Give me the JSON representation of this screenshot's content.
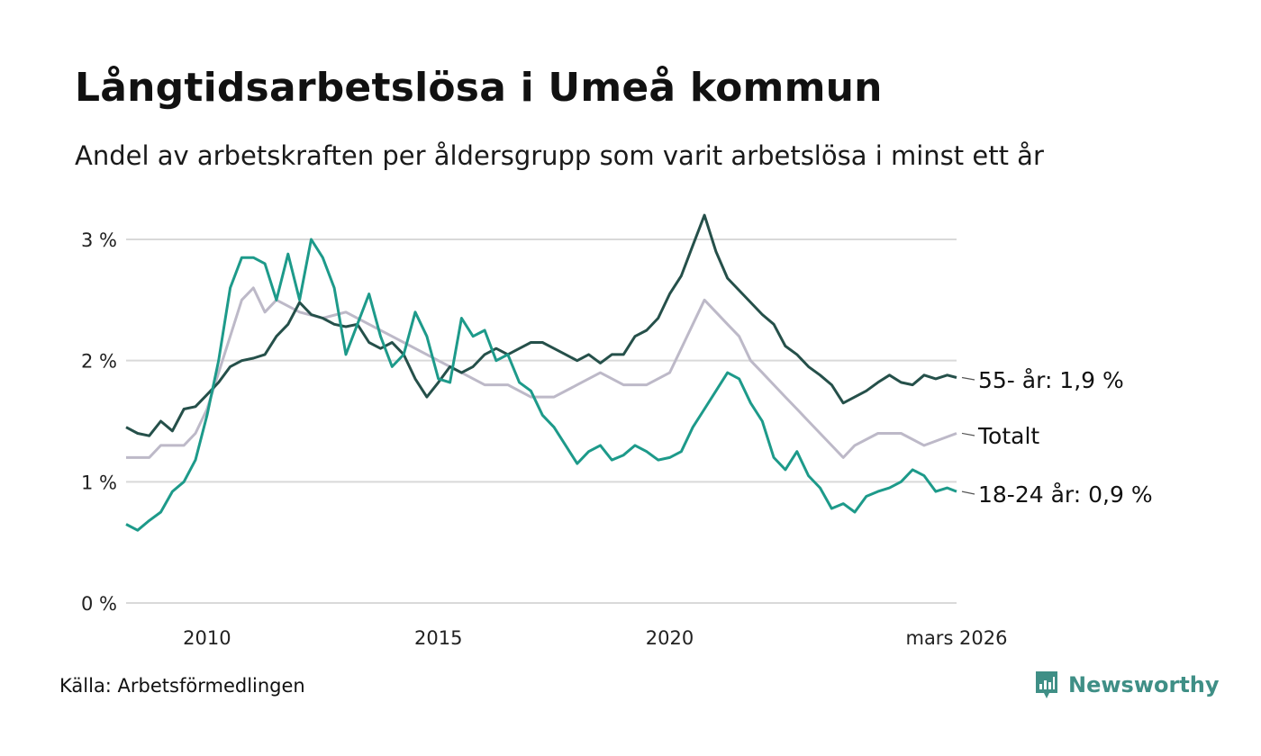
{
  "header": {
    "title": "Långtidsarbetslösa i Umeå kommun",
    "subtitle": "Andel av arbetskraften per åldersgrupp som varit arbetslösa i minst ett år"
  },
  "footer": {
    "source": "Källa: Arbetsförmedlingen",
    "brand": "Newsworthy"
  },
  "colors": {
    "older": "#25504a",
    "young": "#1d9a8a",
    "total": "#bdb9c8",
    "grid": "#d9d9d9",
    "brand": "#3f8f86"
  },
  "chart_data": {
    "type": "line",
    "title": "Långtidsarbetslösa i Umeå kommun",
    "xlabel": "",
    "ylabel": "",
    "x_start": 2008.25,
    "x_end": 2026.2,
    "ylim": [
      0,
      3.2
    ],
    "y_ticks": [
      0,
      1,
      2,
      3
    ],
    "y_tick_labels": [
      "0 %",
      "1 %",
      "2 %",
      "3 %"
    ],
    "x_ticks": [
      2010,
      2015,
      2020,
      2026.2
    ],
    "x_tick_labels": [
      "2010",
      "2015",
      "2020",
      "mars 2026"
    ],
    "grid": true,
    "series": [
      {
        "name": "55- år",
        "label": "55- år: 1,9 %",
        "points": [
          [
            2008.25,
            1.45
          ],
          [
            2008.5,
            1.4
          ],
          [
            2008.75,
            1.38
          ],
          [
            2009.0,
            1.5
          ],
          [
            2009.25,
            1.42
          ],
          [
            2009.5,
            1.6
          ],
          [
            2009.75,
            1.62
          ],
          [
            2010.0,
            1.72
          ],
          [
            2010.25,
            1.82
          ],
          [
            2010.5,
            1.95
          ],
          [
            2010.75,
            2.0
          ],
          [
            2011.0,
            2.02
          ],
          [
            2011.25,
            2.05
          ],
          [
            2011.5,
            2.2
          ],
          [
            2011.75,
            2.3
          ],
          [
            2012.0,
            2.48
          ],
          [
            2012.25,
            2.38
          ],
          [
            2012.5,
            2.35
          ],
          [
            2012.75,
            2.3
          ],
          [
            2013.0,
            2.28
          ],
          [
            2013.25,
            2.3
          ],
          [
            2013.5,
            2.15
          ],
          [
            2013.75,
            2.1
          ],
          [
            2014.0,
            2.15
          ],
          [
            2014.25,
            2.05
          ],
          [
            2014.5,
            1.85
          ],
          [
            2014.75,
            1.7
          ],
          [
            2015.0,
            1.82
          ],
          [
            2015.25,
            1.95
          ],
          [
            2015.5,
            1.9
          ],
          [
            2015.75,
            1.95
          ],
          [
            2016.0,
            2.05
          ],
          [
            2016.25,
            2.1
          ],
          [
            2016.5,
            2.05
          ],
          [
            2016.75,
            2.1
          ],
          [
            2017.0,
            2.15
          ],
          [
            2017.25,
            2.15
          ],
          [
            2017.5,
            2.1
          ],
          [
            2017.75,
            2.05
          ],
          [
            2018.0,
            2.0
          ],
          [
            2018.25,
            2.05
          ],
          [
            2018.5,
            1.98
          ],
          [
            2018.75,
            2.05
          ],
          [
            2019.0,
            2.05
          ],
          [
            2019.25,
            2.2
          ],
          [
            2019.5,
            2.25
          ],
          [
            2019.75,
            2.35
          ],
          [
            2020.0,
            2.55
          ],
          [
            2020.25,
            2.7
          ],
          [
            2020.5,
            2.95
          ],
          [
            2020.75,
            3.2
          ],
          [
            2021.0,
            2.9
          ],
          [
            2021.25,
            2.68
          ],
          [
            2021.5,
            2.58
          ],
          [
            2021.75,
            2.48
          ],
          [
            2022.0,
            2.38
          ],
          [
            2022.25,
            2.3
          ],
          [
            2022.5,
            2.12
          ],
          [
            2022.75,
            2.05
          ],
          [
            2023.0,
            1.95
          ],
          [
            2023.25,
            1.88
          ],
          [
            2023.5,
            1.8
          ],
          [
            2023.75,
            1.65
          ],
          [
            2024.0,
            1.7
          ],
          [
            2024.25,
            1.75
          ],
          [
            2024.5,
            1.82
          ],
          [
            2024.75,
            1.88
          ],
          [
            2025.0,
            1.82
          ],
          [
            2025.25,
            1.8
          ],
          [
            2025.5,
            1.88
          ],
          [
            2025.75,
            1.85
          ],
          [
            2026.0,
            1.88
          ],
          [
            2026.2,
            1.86
          ]
        ]
      },
      {
        "name": "Totalt",
        "label": "Totalt",
        "points": [
          [
            2008.25,
            1.2
          ],
          [
            2008.75,
            1.2
          ],
          [
            2009.0,
            1.3
          ],
          [
            2009.5,
            1.3
          ],
          [
            2009.75,
            1.4
          ],
          [
            2010.0,
            1.6
          ],
          [
            2010.25,
            1.9
          ],
          [
            2010.5,
            2.2
          ],
          [
            2010.75,
            2.5
          ],
          [
            2011.0,
            2.6
          ],
          [
            2011.25,
            2.4
          ],
          [
            2011.5,
            2.5
          ],
          [
            2011.75,
            2.45
          ],
          [
            2012.0,
            2.4
          ],
          [
            2012.5,
            2.35
          ],
          [
            2013.0,
            2.4
          ],
          [
            2013.5,
            2.3
          ],
          [
            2014.0,
            2.2
          ],
          [
            2014.5,
            2.1
          ],
          [
            2015.0,
            2.0
          ],
          [
            2015.5,
            1.9
          ],
          [
            2016.0,
            1.8
          ],
          [
            2016.5,
            1.8
          ],
          [
            2017.0,
            1.7
          ],
          [
            2017.5,
            1.7
          ],
          [
            2018.0,
            1.8
          ],
          [
            2018.5,
            1.9
          ],
          [
            2019.0,
            1.8
          ],
          [
            2019.5,
            1.8
          ],
          [
            2020.0,
            1.9
          ],
          [
            2020.25,
            2.1
          ],
          [
            2020.5,
            2.3
          ],
          [
            2020.75,
            2.5
          ],
          [
            2021.0,
            2.4
          ],
          [
            2021.25,
            2.3
          ],
          [
            2021.5,
            2.2
          ],
          [
            2021.75,
            2.0
          ],
          [
            2022.0,
            1.9
          ],
          [
            2022.25,
            1.8
          ],
          [
            2022.5,
            1.7
          ],
          [
            2022.75,
            1.6
          ],
          [
            2023.0,
            1.5
          ],
          [
            2023.25,
            1.4
          ],
          [
            2023.5,
            1.3
          ],
          [
            2023.75,
            1.2
          ],
          [
            2024.0,
            1.3
          ],
          [
            2024.5,
            1.4
          ],
          [
            2025.0,
            1.4
          ],
          [
            2025.5,
            1.3
          ],
          [
            2026.2,
            1.4
          ]
        ]
      },
      {
        "name": "18-24 år",
        "label": "18-24 år: 0,9 %",
        "points": [
          [
            2008.25,
            0.65
          ],
          [
            2008.5,
            0.6
          ],
          [
            2008.75,
            0.68
          ],
          [
            2009.0,
            0.75
          ],
          [
            2009.25,
            0.92
          ],
          [
            2009.5,
            1.0
          ],
          [
            2009.75,
            1.18
          ],
          [
            2010.0,
            1.55
          ],
          [
            2010.25,
            2.0
          ],
          [
            2010.5,
            2.6
          ],
          [
            2010.75,
            2.85
          ],
          [
            2011.0,
            2.85
          ],
          [
            2011.25,
            2.8
          ],
          [
            2011.5,
            2.5
          ],
          [
            2011.75,
            2.88
          ],
          [
            2012.0,
            2.5
          ],
          [
            2012.25,
            3.0
          ],
          [
            2012.5,
            2.85
          ],
          [
            2012.75,
            2.6
          ],
          [
            2013.0,
            2.05
          ],
          [
            2013.25,
            2.3
          ],
          [
            2013.5,
            2.55
          ],
          [
            2013.75,
            2.2
          ],
          [
            2014.0,
            1.95
          ],
          [
            2014.25,
            2.05
          ],
          [
            2014.5,
            2.4
          ],
          [
            2014.75,
            2.2
          ],
          [
            2015.0,
            1.85
          ],
          [
            2015.25,
            1.82
          ],
          [
            2015.5,
            2.35
          ],
          [
            2015.75,
            2.2
          ],
          [
            2016.0,
            2.25
          ],
          [
            2016.25,
            2.0
          ],
          [
            2016.5,
            2.05
          ],
          [
            2016.75,
            1.82
          ],
          [
            2017.0,
            1.75
          ],
          [
            2017.25,
            1.55
          ],
          [
            2017.5,
            1.45
          ],
          [
            2017.75,
            1.3
          ],
          [
            2018.0,
            1.15
          ],
          [
            2018.25,
            1.25
          ],
          [
            2018.5,
            1.3
          ],
          [
            2018.75,
            1.18
          ],
          [
            2019.0,
            1.22
          ],
          [
            2019.25,
            1.3
          ],
          [
            2019.5,
            1.25
          ],
          [
            2019.75,
            1.18
          ],
          [
            2020.0,
            1.2
          ],
          [
            2020.25,
            1.25
          ],
          [
            2020.5,
            1.45
          ],
          [
            2020.75,
            1.6
          ],
          [
            2021.0,
            1.75
          ],
          [
            2021.25,
            1.9
          ],
          [
            2021.5,
            1.85
          ],
          [
            2021.75,
            1.65
          ],
          [
            2022.0,
            1.5
          ],
          [
            2022.25,
            1.2
          ],
          [
            2022.5,
            1.1
          ],
          [
            2022.75,
            1.25
          ],
          [
            2023.0,
            1.05
          ],
          [
            2023.25,
            0.95
          ],
          [
            2023.5,
            0.78
          ],
          [
            2023.75,
            0.82
          ],
          [
            2024.0,
            0.75
          ],
          [
            2024.25,
            0.88
          ],
          [
            2024.5,
            0.92
          ],
          [
            2024.75,
            0.95
          ],
          [
            2025.0,
            1.0
          ],
          [
            2025.25,
            1.1
          ],
          [
            2025.5,
            1.05
          ],
          [
            2025.75,
            0.92
          ],
          [
            2026.0,
            0.95
          ],
          [
            2026.2,
            0.92
          ]
        ]
      }
    ],
    "end_labels": [
      "55- år: 1,9 %",
      "Totalt",
      "18-24 år: 0,9 %"
    ]
  }
}
